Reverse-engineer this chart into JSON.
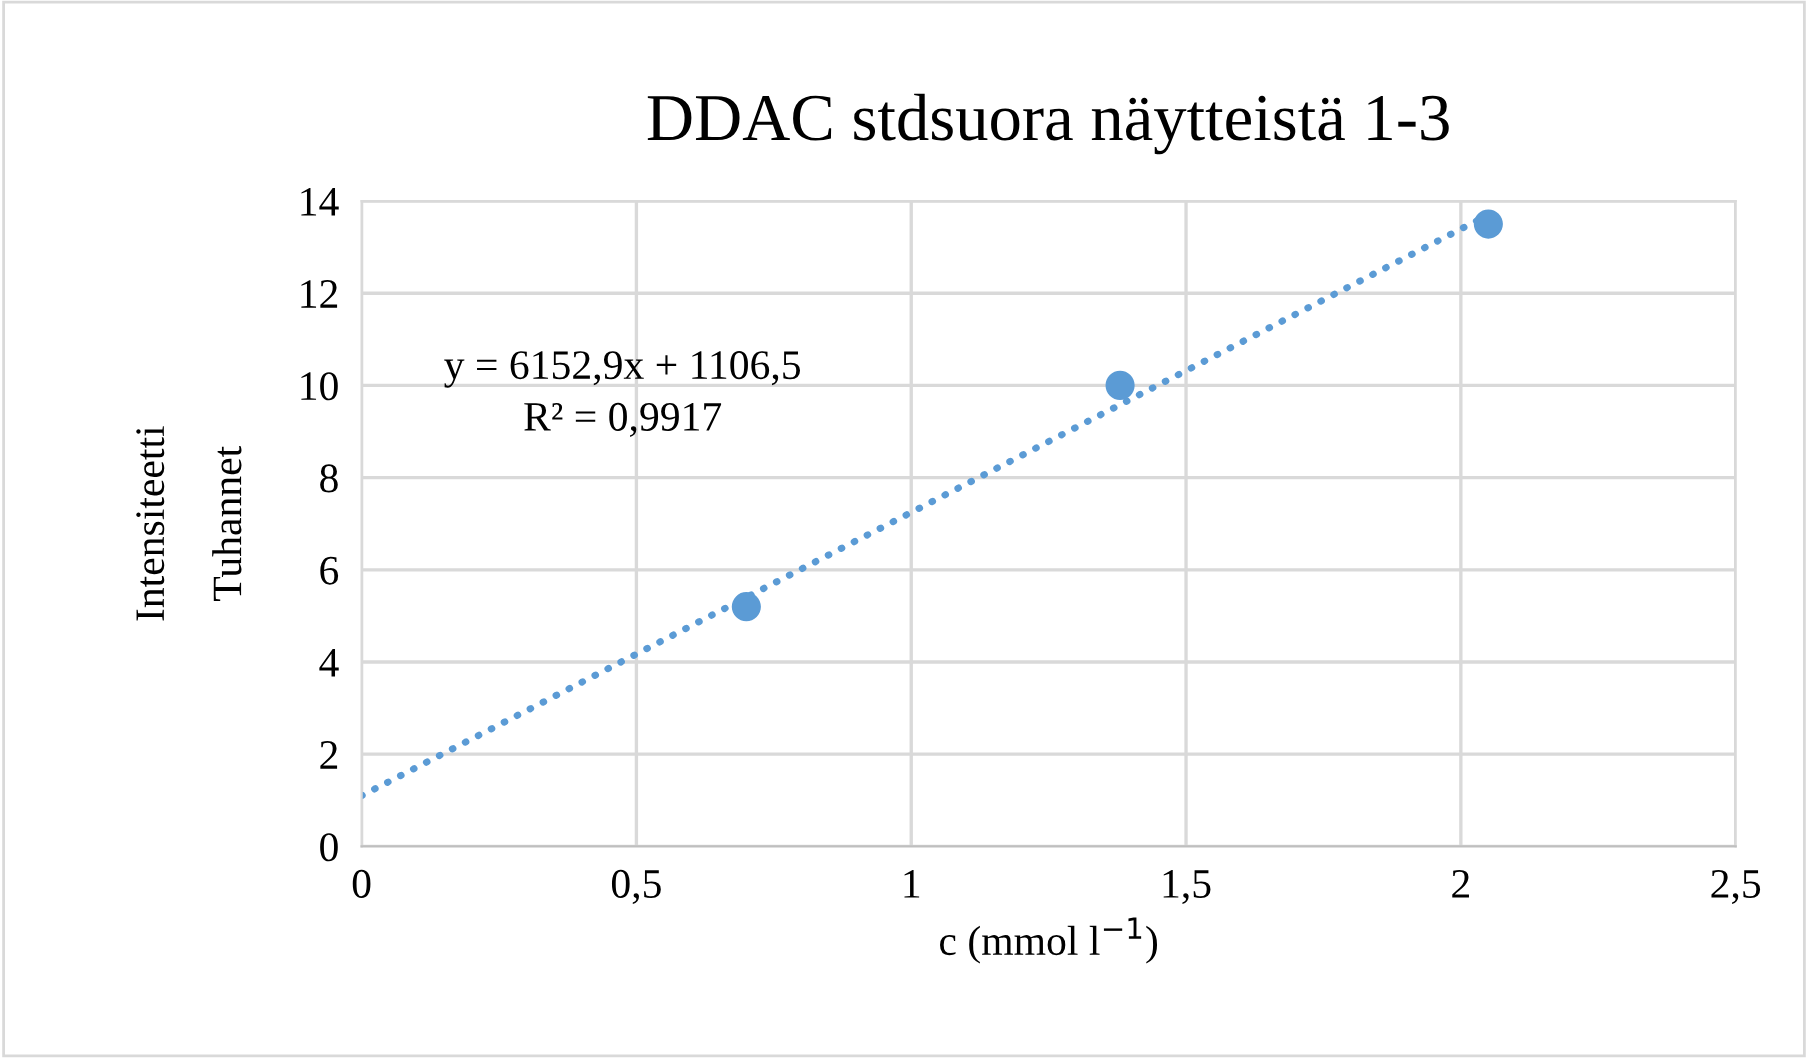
{
  "chart_data": {
    "type": "scatter",
    "title": "DDAC stdsuora näytteistä 1-3",
    "xlabel": "c (mmol l$^{−1}$)",
    "ylabel": "Intensiteetti",
    "annotations": [
      "Tuhannet",
      "y = 6152,9x + 1106,5",
      "R² = 0,9917"
    ],
    "x": [
      0.7,
      1.38,
      2.05
    ],
    "series": [
      {
        "color": "#5b9bd5",
        "marker": "circle",
        "values": [
          5.2,
          10.0,
          13.5
        ]
      },
      {
        "type": "line",
        "color": "#5b9bd5",
        "line_style": "dotted",
        "marker": "none",
        "x": [
          0,
          2.05
        ],
        "values": [
          1.1,
          13.7
        ]
      }
    ],
    "xlim": [
      0,
      2.5
    ],
    "ylim": [
      0,
      14
    ],
    "xticks": [
      0,
      {
        "value": 0.5,
        "label": "0,5"
      },
      1,
      {
        "value": 1.5,
        "label": "1,5"
      },
      2,
      {
        "value": 2.5,
        "label": "2,5"
      }
    ],
    "yticks": [
      0,
      2,
      4,
      6,
      8,
      10,
      12,
      14
    ],
    "grid": true,
    "legend": false
  }
}
